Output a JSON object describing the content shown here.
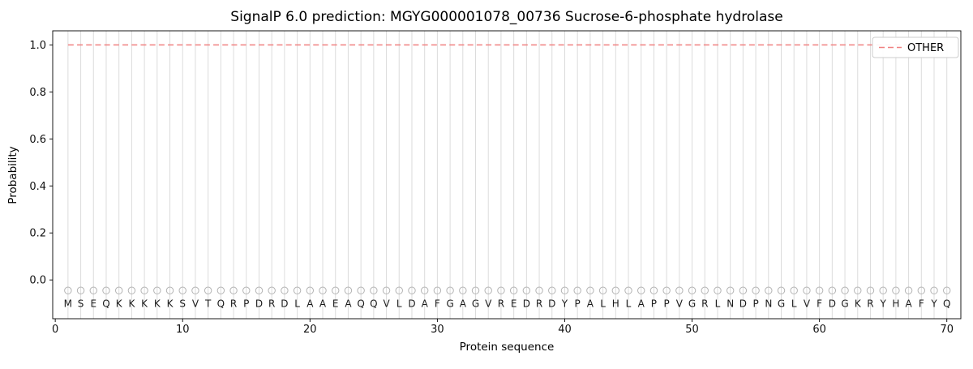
{
  "figure": {
    "background": "#ffffff"
  },
  "chart_data": {
    "type": "line",
    "title": "SignalP 6.0 prediction: MGYG000001078_00736 Sucrose-6-phosphate hydrolase",
    "xlabel": "Protein sequence",
    "ylabel": "Probability",
    "xlim": [
      -0.2,
      71.1
    ],
    "ylim": [
      -0.165,
      1.06
    ],
    "xticks": [
      0,
      10,
      20,
      30,
      40,
      50,
      60,
      70
    ],
    "yticks": [
      0.0,
      0.2,
      0.4,
      0.6,
      0.8,
      1.0
    ],
    "grid": "vertical-line-per-residue",
    "sequence": "MSEQKKKKKSVTQRPDRDLAAEAQQVLDAFGAGVREDRDYPALHLAPPVGRLNDPNGLVFDGKRYHAFYQ",
    "sequence_start": 1,
    "series": [
      {
        "name": "OTHER",
        "linestyle": "dashed",
        "color": "#f08080",
        "y_constant": 1.0
      }
    ],
    "marker": {
      "shape": "open-circle",
      "y": -0.045,
      "radius_px": 4.2
    },
    "sequence_label_y": -0.1,
    "legend": {
      "location": "upper right",
      "entries": [
        {
          "label": "OTHER",
          "color": "#f08080",
          "linestyle": "dashed"
        }
      ]
    },
    "colors": {
      "grid": "#dcdcdc",
      "axes": "#000000",
      "tick_label": "#111111",
      "marker": "#b3b3b3",
      "sequence_text": "#1a1a1a",
      "other_line": "#f08080",
      "legend_border": "#cccccc"
    }
  }
}
